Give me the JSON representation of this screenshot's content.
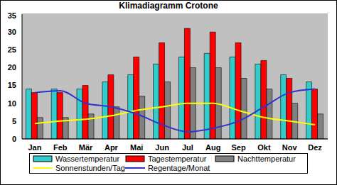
{
  "chart_data": {
    "type": "bar",
    "title": "Klimadiagramm Crotone",
    "categories": [
      "Jan",
      "Feb",
      "Mär",
      "Apr",
      "Mai",
      "Jun",
      "Jul",
      "Aug",
      "Sep",
      "Okt",
      "Nov",
      "Dez"
    ],
    "series": [
      {
        "name": "Wassertemperatur",
        "type": "bar",
        "color": "#33cccc",
        "values": [
          14,
          14,
          14,
          16,
          18,
          21,
          23,
          24,
          23,
          21,
          18,
          16
        ]
      },
      {
        "name": "Tagestemperatur",
        "type": "bar",
        "color": "#ff0000",
        "values": [
          13,
          13,
          15,
          18,
          23,
          27,
          31,
          30,
          27,
          22,
          17,
          14
        ]
      },
      {
        "name": "Nachttemperatur",
        "type": "bar",
        "color": "#808080",
        "values": [
          6,
          6,
          7,
          9,
          12,
          16,
          20,
          20,
          17,
          14,
          10,
          7
        ]
      },
      {
        "name": "Sonnenstunden/Tag",
        "type": "line",
        "color": "#ffff00",
        "marker": "none",
        "line_style": "solid",
        "values": [
          4.3,
          5,
          5.5,
          6.5,
          8,
          9,
          10,
          10,
          8,
          6,
          5,
          4
        ]
      },
      {
        "name": "Regentage/Monat",
        "type": "line",
        "color": "#3333cc",
        "marker": "none",
        "line_style": "solid",
        "values": [
          13,
          13.5,
          10,
          9,
          7,
          4,
          2,
          3,
          5,
          9,
          13,
          14
        ]
      }
    ],
    "ylim": [
      0,
      35
    ],
    "yticks": [
      0,
      5,
      10,
      15,
      20,
      25,
      30,
      35
    ],
    "grid": true,
    "legend": "bottom"
  }
}
